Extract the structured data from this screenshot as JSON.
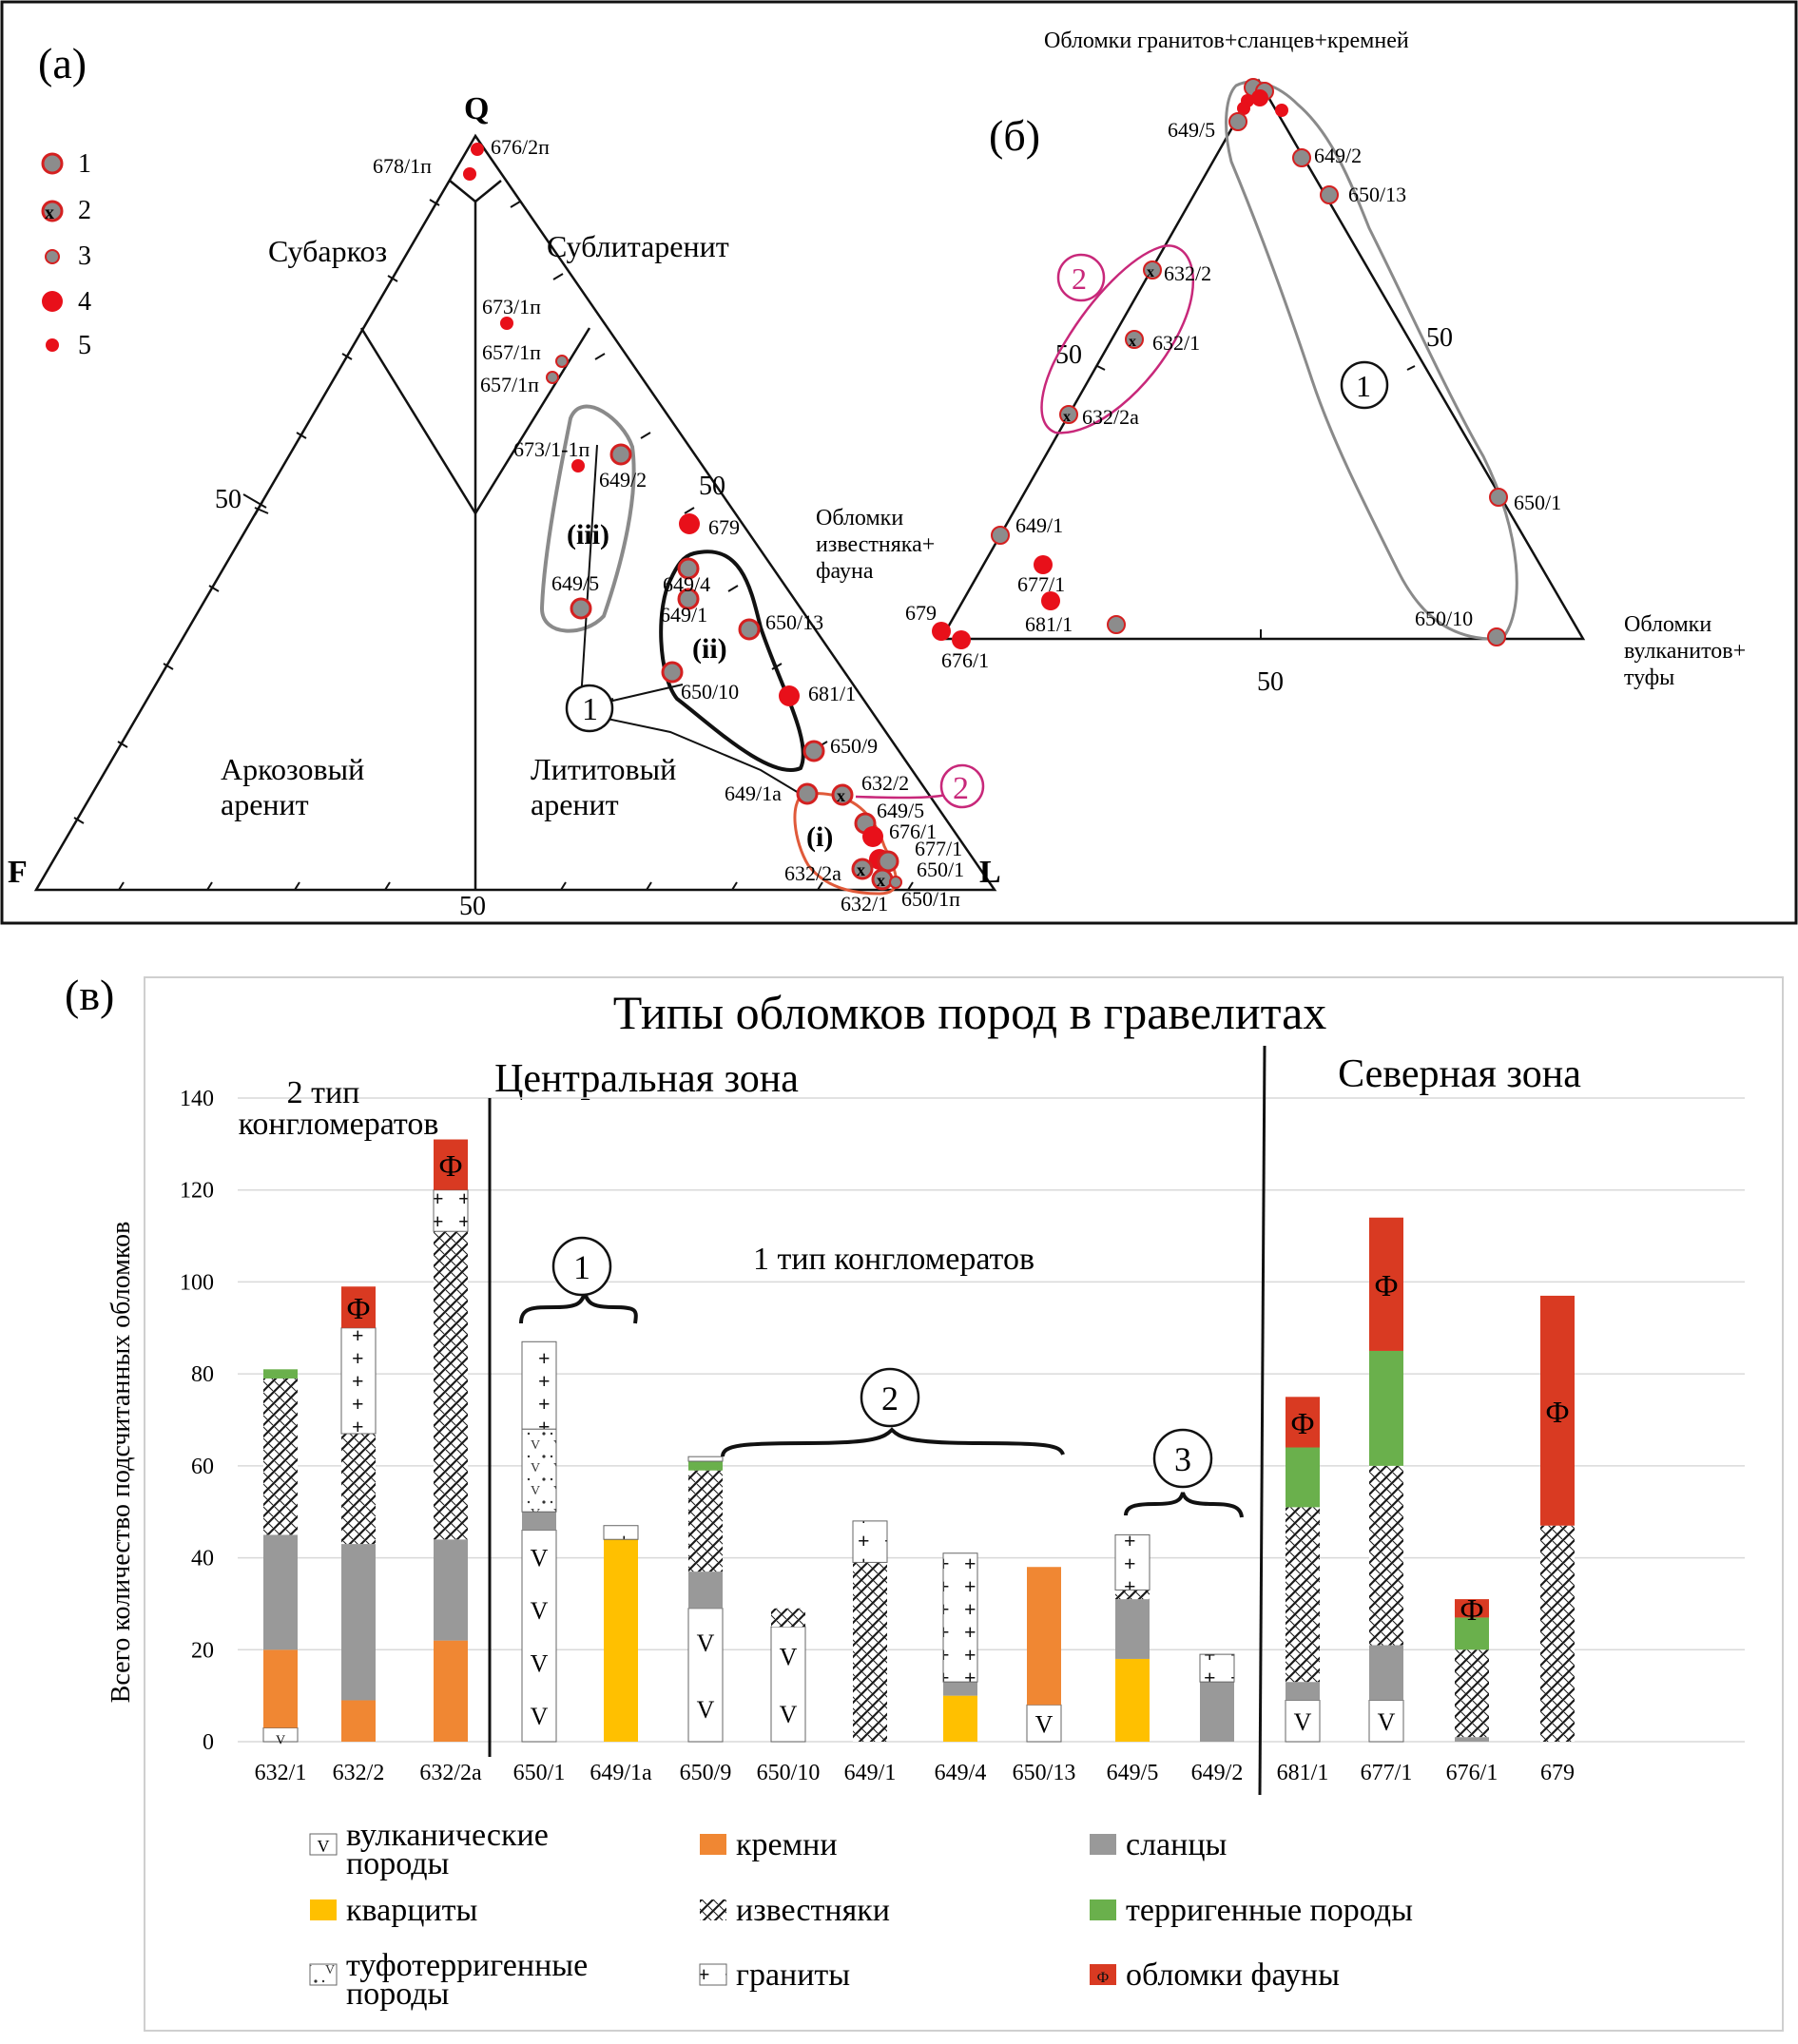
{
  "panels": {
    "a_label": "(а)",
    "b_label": "(б)",
    "c_label": "(в)"
  },
  "ternary_a": {
    "apex_q": "Q",
    "apex_f": "F",
    "apex_l": "L",
    "fifty": "50",
    "fields": {
      "subarkose": "Субаркоз",
      "sublitharenite": "Сублитаренит",
      "arkosic_1": "Аркозовый",
      "arkosic_2": "аренит",
      "lithic_1": "Лититовый",
      "lithic_2": "аренит"
    },
    "group_labels": {
      "i": "(i)",
      "ii": "(ii)",
      "iii": "(iii)",
      "one": "1",
      "two": "2"
    },
    "legend": [
      {
        "num": "1",
        "symbol": "gray-circle"
      },
      {
        "num": "2",
        "symbol": "x-circle"
      },
      {
        "num": "3",
        "symbol": "small-gray"
      },
      {
        "num": "4",
        "symbol": "big-red"
      },
      {
        "num": "5",
        "symbol": "small-red"
      }
    ],
    "samples": [
      "676/2п",
      "678/1п",
      "673/1п",
      "657/1п",
      "657/1п",
      "673/1-1п",
      "649/2",
      "679",
      "649/4",
      "649/1",
      "650/13",
      "649/5",
      "650/10",
      "681/1",
      "650/9",
      "649/1а",
      "632/2",
      "649/5",
      "676/1",
      "677/1",
      "632/2а",
      "650/1",
      "632/1",
      "650/1п"
    ]
  },
  "ternary_b": {
    "top_label": "Обломки гранитов+сланцев+кремней",
    "left_label_1": "Обломки",
    "left_label_2": "известняка+",
    "left_label_3": "фауна",
    "right_label_1": "Обломки",
    "right_label_2": "вулканитов+",
    "right_label_3": "туфы",
    "fifty": "50",
    "group_one": "1",
    "group_two": "2",
    "samples": [
      "649/5",
      "649/2",
      "650/13",
      "632/2",
      "632/1",
      "632/2а",
      "650/1",
      "649/1",
      "677/1",
      "681/1",
      "679",
      "676/1",
      "650/10"
    ]
  },
  "chart_data": {
    "type": "bar",
    "title": "Типы обломков пород в гравелитах",
    "ylabel": "Всего количество подсчитанных обломков",
    "xlabel": "",
    "ylim": [
      0,
      140
    ],
    "yticks": [
      "0",
      "20",
      "40",
      "60",
      "80",
      "100",
      "120",
      "140"
    ],
    "zones": {
      "central": "Центральная зона",
      "northern": "Северная зона"
    },
    "annotations": {
      "type2": "2 тип конгломератов",
      "type1": "1 тип конгломератов",
      "group1": "1",
      "group2": "2",
      "group3": "3",
      "fauna_mark": "Ф",
      "volcanic_mark": "V"
    },
    "categories": [
      "632/1",
      "632/2",
      "632/2а",
      "650/1",
      "649/1а",
      "650/9",
      "650/10",
      "649/1",
      "649/4",
      "650/13",
      "649/5",
      "649/2",
      "681/1",
      "677/1",
      "676/1",
      "679"
    ],
    "series": [
      {
        "key": "volcanic",
        "name": "вулканические породы",
        "color": "#ffffff",
        "values": [
          3,
          0,
          0,
          46,
          0,
          29,
          25,
          0,
          0,
          8,
          0,
          0,
          9,
          9,
          0,
          0
        ]
      },
      {
        "key": "chert",
        "name": "кремни",
        "color": "#f08733",
        "values": [
          17,
          9,
          22,
          0,
          0,
          0,
          0,
          0,
          0,
          30,
          0,
          0,
          0,
          0,
          0,
          0
        ]
      },
      {
        "key": "quartzite",
        "name": "кварциты",
        "color": "#ffc000",
        "values": [
          0,
          0,
          0,
          0,
          44,
          0,
          0,
          0,
          10,
          0,
          18,
          0,
          0,
          0,
          0,
          0
        ]
      },
      {
        "key": "shale",
        "name": "сланцы",
        "color": "#999999",
        "values": [
          25,
          34,
          22,
          4,
          0,
          8,
          0,
          0,
          3,
          0,
          13,
          13,
          4,
          12,
          1,
          0
        ]
      },
      {
        "key": "limestone",
        "name": "известняки",
        "color": "#hatch",
        "values": [
          34,
          24,
          67,
          0,
          0,
          22,
          4,
          39,
          0,
          0,
          2,
          0,
          38,
          39,
          19,
          47
        ]
      },
      {
        "key": "tuffterrigenous",
        "name": "туфотерригенные породы",
        "color": "#dotted",
        "values": [
          0,
          0,
          0,
          18,
          0,
          0,
          0,
          0,
          0,
          0,
          0,
          0,
          0,
          0,
          0,
          0
        ]
      },
      {
        "key": "terrigenous",
        "name": "терригенные породы",
        "color": "#6ab04c",
        "values": [
          2,
          0,
          0,
          0,
          0,
          2,
          0,
          0,
          0,
          0,
          0,
          0,
          13,
          25,
          7,
          0
        ]
      },
      {
        "key": "granite",
        "name": "граниты",
        "color": "#plus",
        "values": [
          0,
          23,
          9,
          19,
          3,
          1,
          0,
          9,
          28,
          0,
          12,
          6,
          0,
          0,
          0,
          0
        ]
      },
      {
        "key": "fauna",
        "name": "обломки фауны",
        "color": "#d93a22",
        "values": [
          0,
          9,
          11,
          0,
          0,
          0,
          0,
          0,
          0,
          0,
          0,
          0,
          11,
          29,
          4,
          50
        ]
      }
    ],
    "legend": [
      {
        "key": "volcanic",
        "line1": "вулканические",
        "line2": "породы"
      },
      {
        "key": "chert",
        "line1": "кремни",
        "line2": ""
      },
      {
        "key": "shale",
        "line1": "сланцы",
        "line2": ""
      },
      {
        "key": "quartzite",
        "line1": "кварциты",
        "line2": ""
      },
      {
        "key": "limestone",
        "line1": "известняки",
        "line2": ""
      },
      {
        "key": "terrigenous",
        "line1": "терригенные породы",
        "line2": ""
      },
      {
        "key": "tuffterrigenous",
        "line1": "туфотерригенные",
        "line2": "породы"
      },
      {
        "key": "granite",
        "line1": "граниты",
        "line2": ""
      },
      {
        "key": "fauna",
        "line1": "обломки фауны",
        "line2": ""
      }
    ]
  }
}
